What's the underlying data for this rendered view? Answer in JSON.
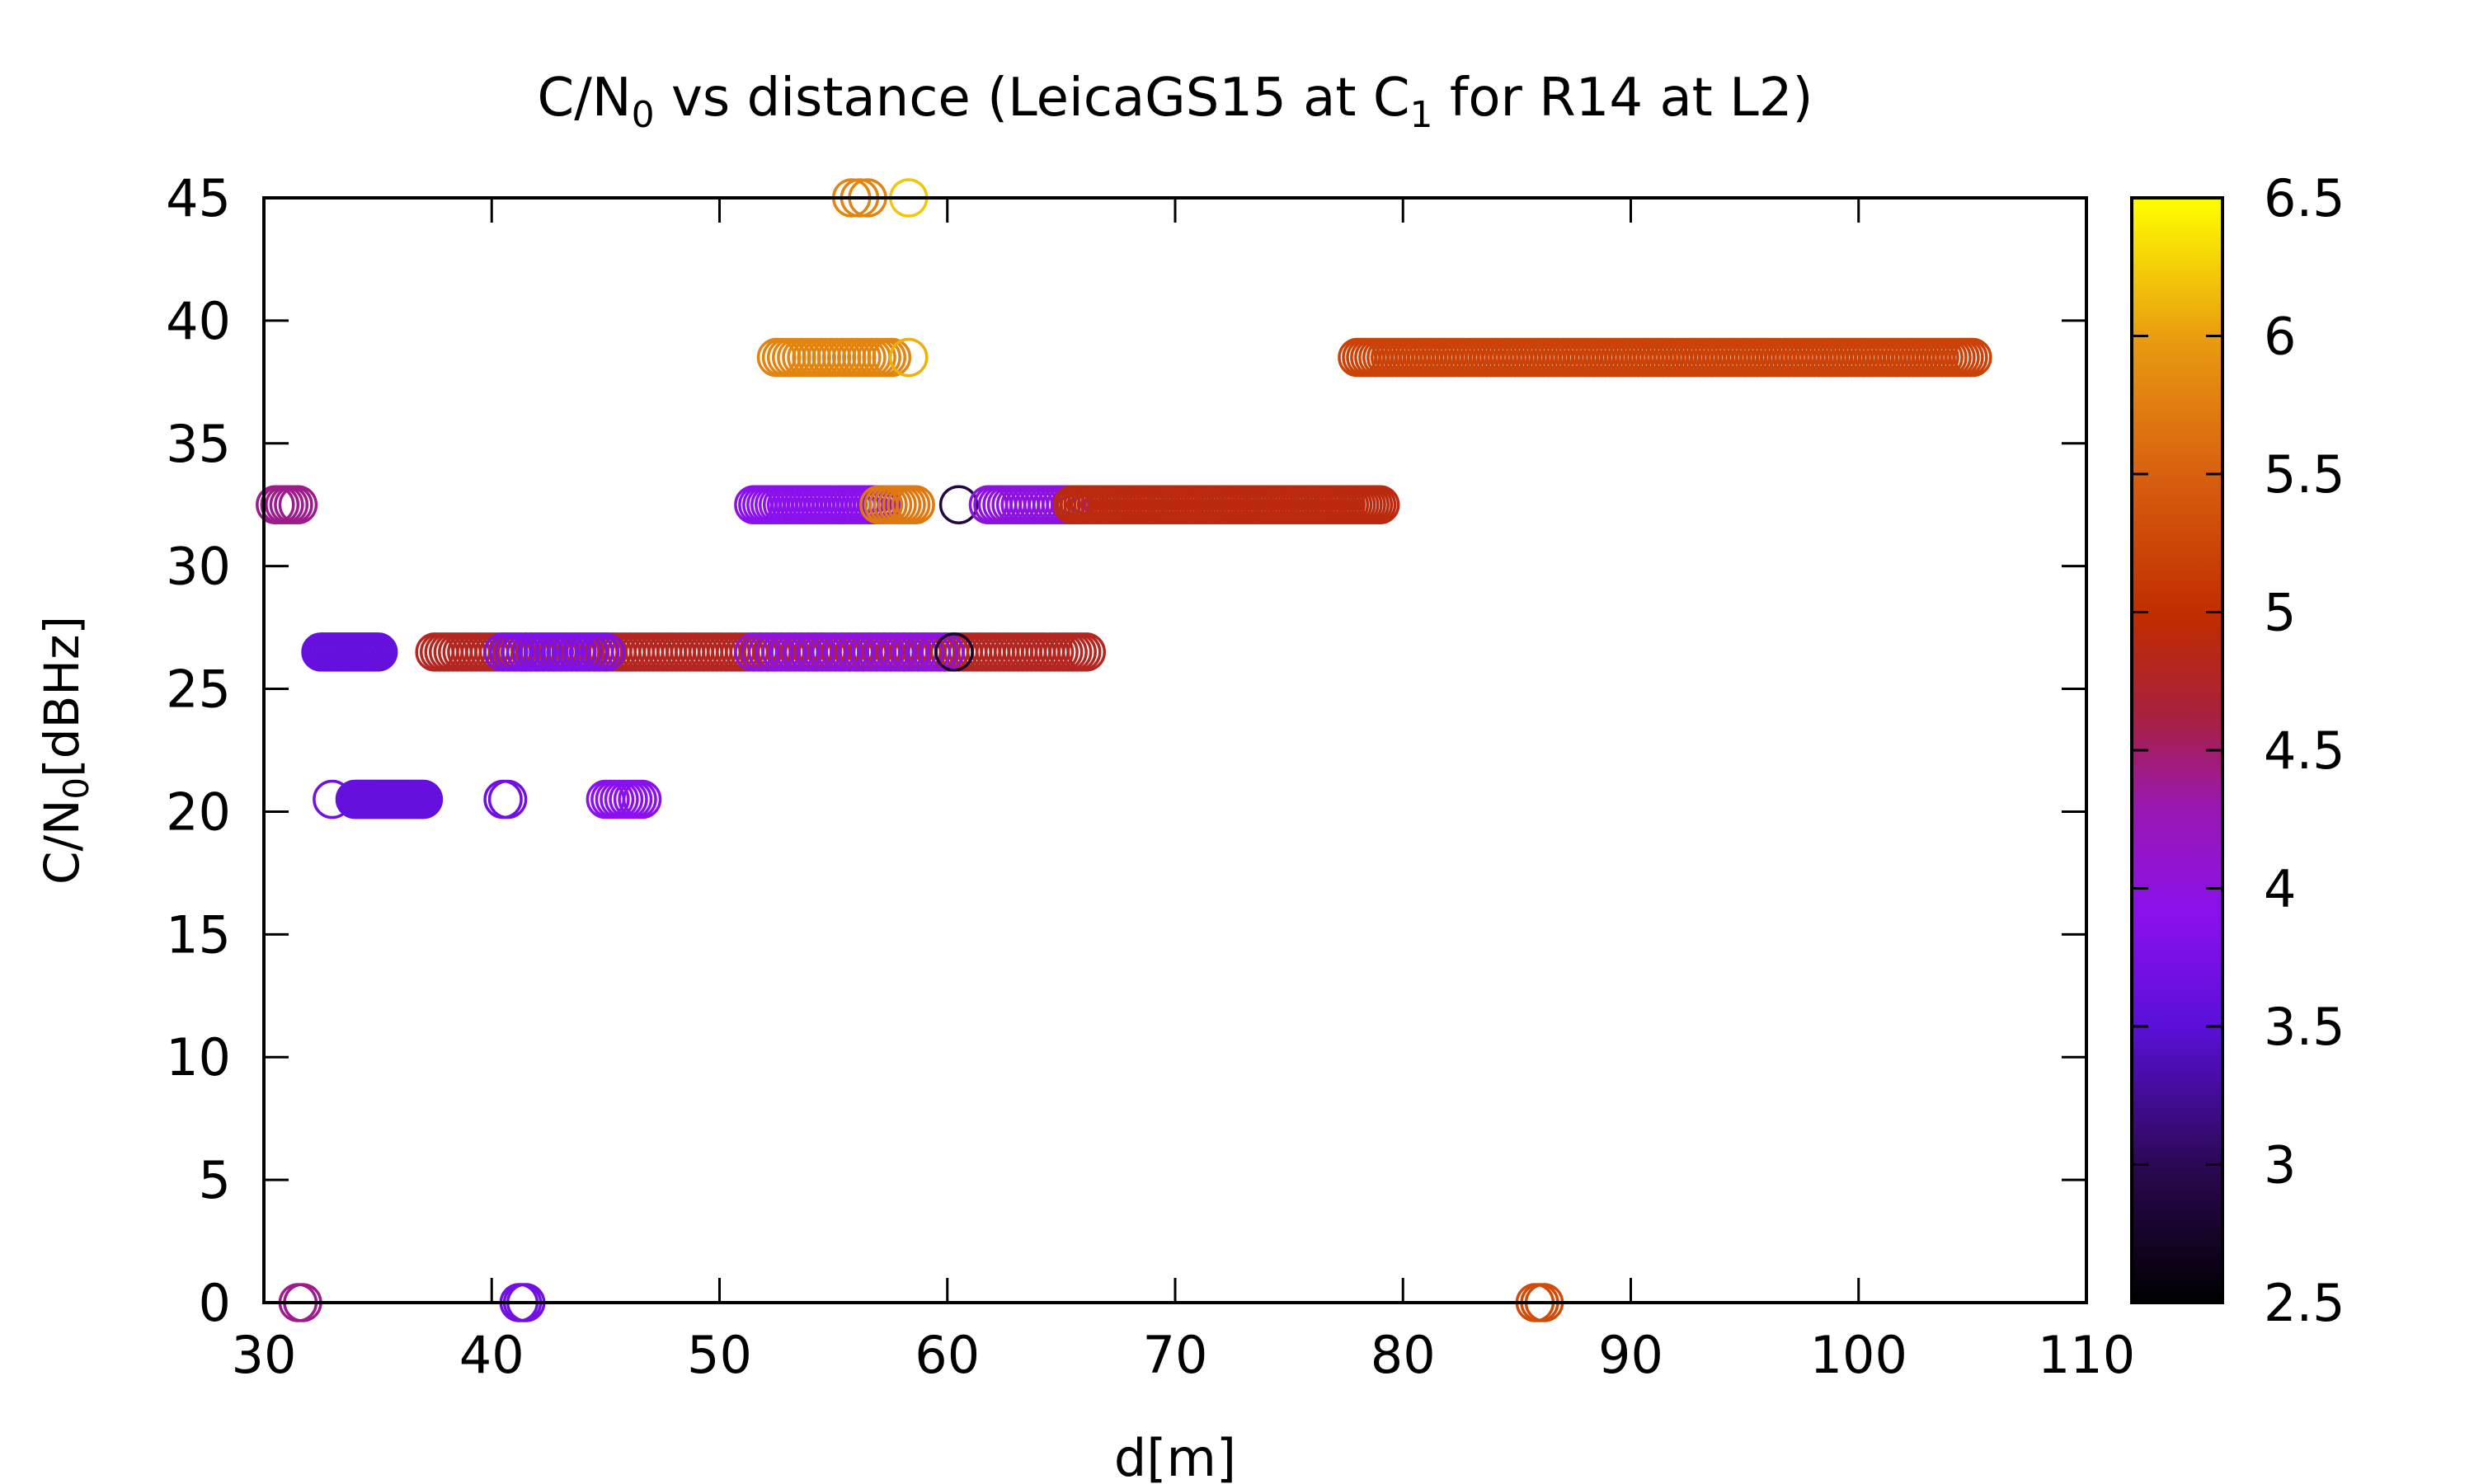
{
  "chart_data": {
    "type": "scatter",
    "title": {
      "prefix": "C/N",
      "sub0": "0",
      "mid": " vs distance (LeicaGS15 at C",
      "sub1": "1",
      "suffix": " for R14 at L2)"
    },
    "xlabel": "d[m]",
    "ylabel": {
      "prefix": "C/N",
      "sub": "0",
      "suffix": "[dBHz]"
    },
    "xlim": [
      30,
      110
    ],
    "ylim": [
      0,
      45
    ],
    "xticks": [
      30,
      40,
      50,
      60,
      70,
      80,
      90,
      100,
      110
    ],
    "yticks": [
      0,
      5,
      10,
      15,
      20,
      25,
      30,
      35,
      40,
      45
    ],
    "colorbar": {
      "range": [
        2.5,
        6.5
      ],
      "ticks": [
        "2.5",
        "3",
        "3.5",
        "4",
        "4.5",
        "5",
        "5.5",
        "6",
        "6.5"
      ],
      "palette": "black-blue-purple-red-orange-yellow"
    },
    "marker": "open-circle",
    "grid": false,
    "legend": "none",
    "series": [
      {
        "y": 45,
        "x_start": 55.8,
        "x_end": 56.5,
        "step": 0.35,
        "c": 5.8
      },
      {
        "y": 45,
        "x_start": 58.3,
        "x_end": 58.3,
        "step": 1,
        "c": 6.2
      },
      {
        "y": 38.5,
        "x_start": 52.5,
        "x_end": 57.5,
        "step": 0.22,
        "c": 5.8
      },
      {
        "y": 38.5,
        "x_start": 58.3,
        "x_end": 58.3,
        "step": 1,
        "c": 6.1
      },
      {
        "y": 38.5,
        "x_start": 78,
        "x_end": 105,
        "step": 0.18,
        "c": 5.2
      },
      {
        "y": 32.5,
        "x_start": 30.5,
        "x_end": 31.5,
        "step": 0.2,
        "c": 4.4
      },
      {
        "y": 32.5,
        "x_start": 51.5,
        "x_end": 57,
        "step": 0.18,
        "c": 3.9
      },
      {
        "y": 32.5,
        "x_start": 57,
        "x_end": 58.5,
        "step": 0.2,
        "c": 5.7
      },
      {
        "y": 32.5,
        "x_start": 60.5,
        "x_end": 60.5,
        "step": 1,
        "c": 2.9
      },
      {
        "y": 32.5,
        "x_start": 61.8,
        "x_end": 65.5,
        "step": 0.2,
        "c": 4.0
      },
      {
        "y": 32.5,
        "x_start": 65.5,
        "x_end": 79,
        "step": 0.15,
        "c": 4.9
      },
      {
        "y": 26.5,
        "x_start": 32.5,
        "x_end": 35,
        "step": 0.12,
        "c": 3.6
      },
      {
        "y": 26.5,
        "x_start": 37.5,
        "x_end": 66,
        "step": 0.2,
        "c": 4.8
      },
      {
        "y": 26.5,
        "x_start": 40.5,
        "x_end": 45,
        "step": 0.25,
        "c": 3.8
      },
      {
        "y": 26.5,
        "x_start": 51.5,
        "x_end": 60,
        "step": 0.3,
        "c": 4.0
      },
      {
        "y": 26.5,
        "x_start": 60.3,
        "x_end": 60.3,
        "step": 1,
        "c": 2.8
      },
      {
        "y": 20.5,
        "x_start": 33,
        "x_end": 33,
        "step": 1,
        "c": 3.7
      },
      {
        "y": 20.5,
        "x_start": 34,
        "x_end": 37,
        "step": 0.1,
        "c": 3.6
      },
      {
        "y": 20.5,
        "x_start": 40.5,
        "x_end": 40.7,
        "step": 0.2,
        "c": 3.7
      },
      {
        "y": 20.5,
        "x_start": 45,
        "x_end": 46.5,
        "step": 0.2,
        "c": 3.9
      },
      {
        "y": 0,
        "x_start": 31.5,
        "x_end": 31.7,
        "step": 0.2,
        "c": 4.4
      },
      {
        "y": 0,
        "x_start": 41.2,
        "x_end": 41.5,
        "step": 0.15,
        "c": 3.7
      },
      {
        "y": 0,
        "x_start": 85.8,
        "x_end": 86.2,
        "step": 0.2,
        "c": 5.3
      }
    ]
  }
}
